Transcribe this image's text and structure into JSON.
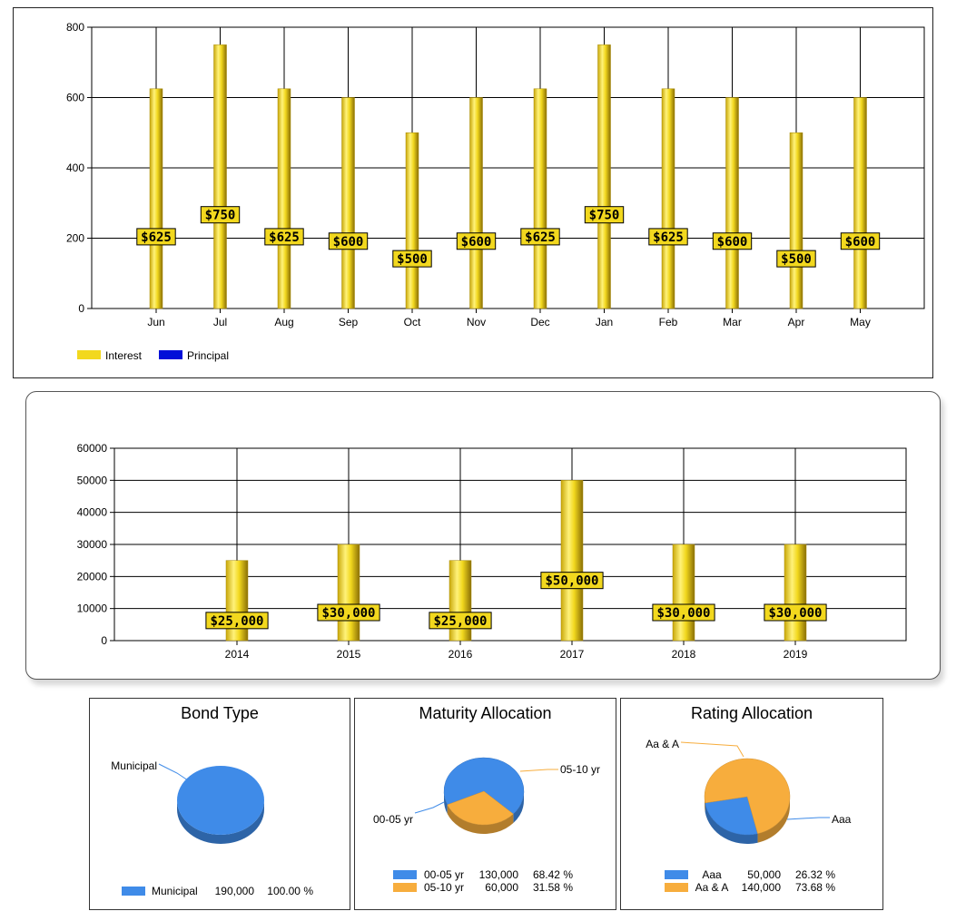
{
  "chart_data": [
    {
      "type": "bar",
      "categories": [
        "Jun",
        "Jul",
        "Aug",
        "Sep",
        "Oct",
        "Nov",
        "Dec",
        "Jan",
        "Feb",
        "Mar",
        "Apr",
        "May"
      ],
      "series": [
        {
          "name": "Interest",
          "values": [
            625,
            750,
            625,
            600,
            500,
            600,
            625,
            750,
            625,
            600,
            500,
            600
          ],
          "color": "#f2d81e"
        },
        {
          "name": "Principal",
          "values": [
            0,
            0,
            0,
            0,
            0,
            0,
            0,
            0,
            0,
            0,
            0,
            0
          ],
          "color": "#0010d8"
        }
      ],
      "data_labels": [
        "$625",
        "$750",
        "$625",
        "$600",
        "$500",
        "$600",
        "$625",
        "$750",
        "$625",
        "$600",
        "$500",
        "$600"
      ],
      "yticks": [
        "0",
        "200",
        "400",
        "600",
        "800"
      ],
      "ylim": [
        0,
        800
      ],
      "grid": true,
      "legend": "bottom-left"
    },
    {
      "type": "bar",
      "categories": [
        "2014",
        "2015",
        "2016",
        "2017",
        "2018",
        "2019"
      ],
      "series": [
        {
          "values": [
            25000,
            30000,
            25000,
            50000,
            30000,
            30000
          ],
          "color": "#f2d81e"
        }
      ],
      "data_labels": [
        "$25,000",
        "$30,000",
        "$25,000",
        "$50,000",
        "$30,000",
        "$30,000"
      ],
      "yticks": [
        "0",
        "10000",
        "20000",
        "30000",
        "40000",
        "50000",
        "60000"
      ],
      "ylim": [
        0,
        60000
      ],
      "grid": true
    },
    {
      "type": "pie",
      "title": "Bond Type",
      "slices": [
        {
          "label": "Municipal",
          "value": 190000,
          "value_text": "190,000",
          "percent": "100.00 %",
          "color": "#3f8be8"
        }
      ],
      "legend": "bottom"
    },
    {
      "type": "pie",
      "title": "Maturity Allocation",
      "slices": [
        {
          "label": "00-05 yr",
          "value": 130000,
          "value_text": "130,000",
          "percent": "68.42 %",
          "color": "#3f8be8"
        },
        {
          "label": "05-10 yr",
          "value": 60000,
          "value_text": "60,000",
          "percent": "31.58 %",
          "color": "#f7ad3d"
        }
      ],
      "legend": "bottom"
    },
    {
      "type": "pie",
      "title": "Rating Allocation",
      "slices": [
        {
          "label": "Aaa",
          "value": 50000,
          "value_text": "50,000",
          "percent": "26.32 %",
          "color": "#3f8be8"
        },
        {
          "label": "Aa & A",
          "value": 140000,
          "value_text": "140,000",
          "percent": "73.68 %",
          "color": "#f7ad3d"
        }
      ],
      "legend": "bottom"
    }
  ]
}
